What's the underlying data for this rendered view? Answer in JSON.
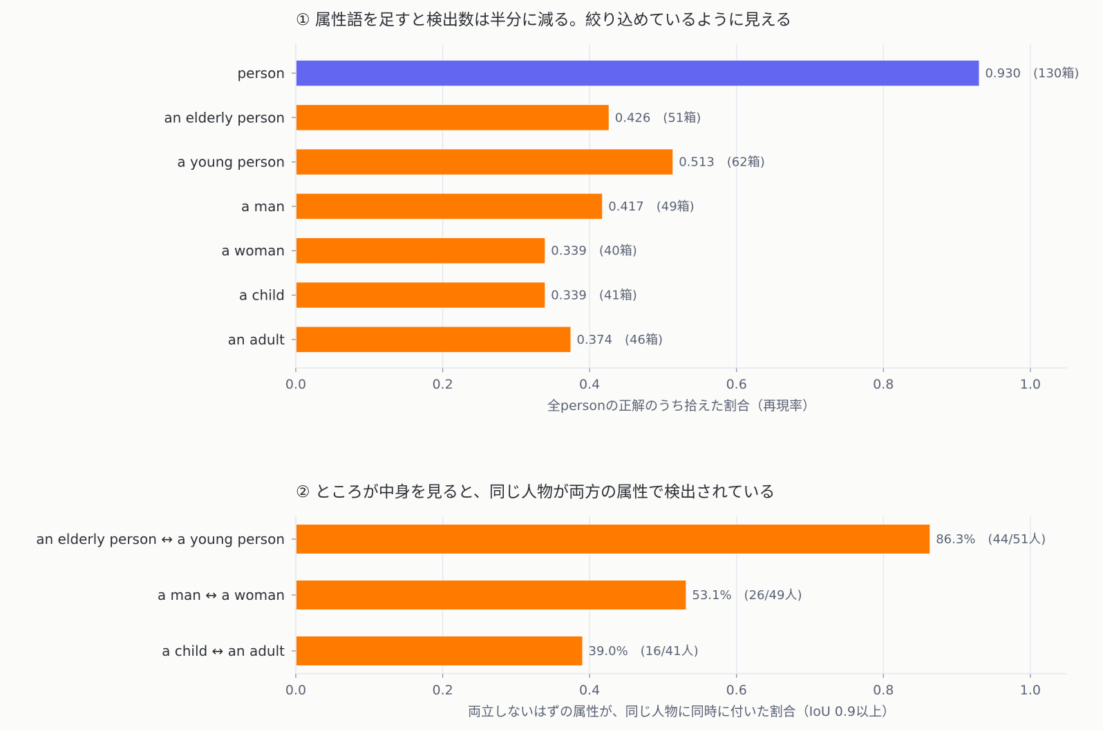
{
  "chart_data": [
    {
      "type": "bar",
      "orientation": "horizontal",
      "title": "① 属性語を足すと検出数は半分に減る。絞り込めているように見える",
      "xlabel": "全personの正解のうち拾えた割合（再現率）",
      "ylabel": "",
      "xlim": [
        0,
        1.05
      ],
      "xticks": [
        "0.0",
        "0.2",
        "0.4",
        "0.6",
        "0.8",
        "1.0"
      ],
      "grid": true,
      "categories": [
        "person",
        "an elderly person",
        "a young person",
        "a man",
        "a woman",
        "a child",
        "an adult"
      ],
      "values": [
        0.93,
        0.426,
        0.513,
        0.417,
        0.339,
        0.339,
        0.374
      ],
      "data_labels": [
        "0.930　(130箱)",
        "0.426　(51箱)",
        "0.513　(62箱)",
        "0.417　(49箱)",
        "0.339　(40箱)",
        "0.339　(41箱)",
        "0.374　(46箱)"
      ],
      "colors": [
        "#6366f1",
        "#ff7b00",
        "#ff7b00",
        "#ff7b00",
        "#ff7b00",
        "#ff7b00",
        "#ff7b00"
      ]
    },
    {
      "type": "bar",
      "orientation": "horizontal",
      "title": "② ところが中身を見ると、同じ人物が両方の属性で検出されている",
      "xlabel": "両立しないはずの属性が、同じ人物に同時に付いた割合（IoU 0.9以上）",
      "ylabel": "",
      "xlim": [
        0,
        1.05
      ],
      "xticks": [
        "0.0",
        "0.2",
        "0.4",
        "0.6",
        "0.8",
        "1.0"
      ],
      "grid": true,
      "categories": [
        "an elderly person  ↔  a young person",
        "a man  ↔  a woman",
        "a child  ↔  an adult"
      ],
      "values": [
        0.863,
        0.531,
        0.39
      ],
      "data_labels": [
        "86.3%　(44/51人)",
        "53.1%　(26/49人)",
        "39.0%　(16/41人)"
      ],
      "colors": [
        "#ff7b00",
        "#ff7b00",
        "#ff7b00"
      ]
    }
  ]
}
